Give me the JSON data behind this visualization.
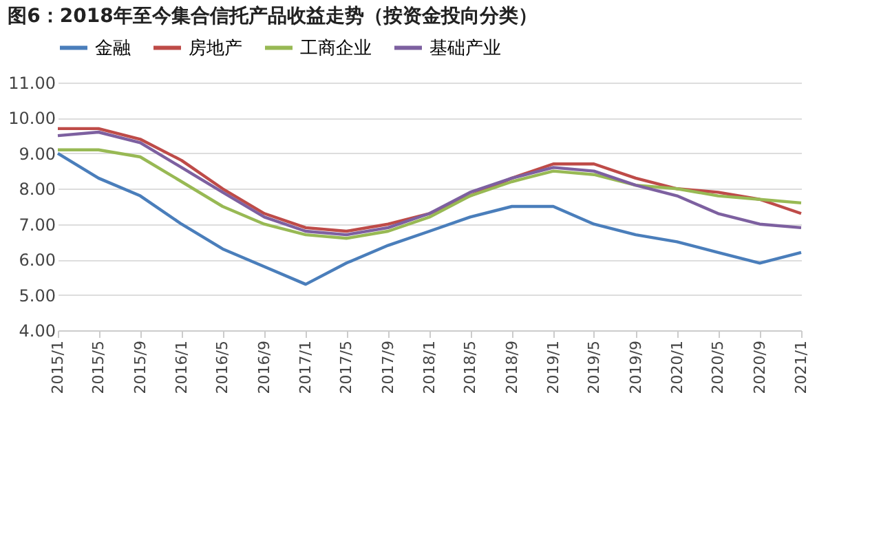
{
  "chart_data": {
    "type": "line",
    "title": "图6：2018年至今集合信托产品收益走势（按资金投向分类）",
    "x": [
      "2015-01",
      "2015-05",
      "2015-09",
      "2016-01",
      "2016-05",
      "2016-09",
      "2017-01",
      "2017-05",
      "2017-09",
      "2018-01",
      "2018-05",
      "2018-09",
      "2019-01",
      "2019-05",
      "2019-09",
      "2020-01",
      "2020-05",
      "2020-09",
      "2021-01"
    ],
    "series": [
      {
        "name": "金融",
        "color": "#4a7ebb",
        "values": [
          9.0,
          8.3,
          7.8,
          7.0,
          6.3,
          5.8,
          5.3,
          5.9,
          6.4,
          6.8,
          7.2,
          7.5,
          7.5,
          7.0,
          6.7,
          6.5,
          6.2,
          5.9,
          6.2
        ]
      },
      {
        "name": "房地产",
        "color": "#be4b48",
        "values": [
          9.7,
          9.7,
          9.4,
          8.8,
          8.0,
          7.3,
          6.9,
          6.8,
          7.0,
          7.3,
          7.8,
          8.3,
          8.7,
          8.7,
          8.3,
          8.0,
          7.9,
          7.7,
          7.3
        ]
      },
      {
        "name": "工商企业",
        "color": "#98b954",
        "values": [
          9.1,
          9.1,
          8.9,
          8.2,
          7.5,
          7.0,
          6.7,
          6.6,
          6.8,
          7.2,
          7.8,
          8.2,
          8.5,
          8.4,
          8.1,
          8.0,
          7.8,
          7.7,
          7.6
        ]
      },
      {
        "name": "基础产业",
        "color": "#7d60a0",
        "values": [
          9.5,
          9.6,
          9.3,
          8.6,
          7.9,
          7.2,
          6.8,
          6.7,
          6.9,
          7.3,
          7.9,
          8.3,
          8.6,
          8.5,
          8.1,
          7.8,
          7.3,
          7.0,
          6.9
        ]
      }
    ],
    "xlim": [
      "2015-01",
      "2021-01"
    ],
    "xticks": [
      {
        "value": "2015-01",
        "label": "2015/1"
      },
      {
        "value": "2015-05",
        "label": "2015/5"
      },
      {
        "value": "2015-09",
        "label": "2015/9"
      },
      {
        "value": "2016-01",
        "label": "2016/1"
      },
      {
        "value": "2016-05",
        "label": "2016/5"
      },
      {
        "value": "2016-09",
        "label": "2016/9"
      },
      {
        "value": "2017-01",
        "label": "2017/1"
      },
      {
        "value": "2017-05",
        "label": "2017/5"
      },
      {
        "value": "2017-09",
        "label": "2017/9"
      },
      {
        "value": "2018-01",
        "label": "2018/1"
      },
      {
        "value": "2018-05",
        "label": "2018/5"
      },
      {
        "value": "2018-09",
        "label": "2018/9"
      },
      {
        "value": "2019-01",
        "label": "2019/1"
      },
      {
        "value": "2019-05",
        "label": "2019/5"
      },
      {
        "value": "2019-09",
        "label": "2019/9"
      },
      {
        "value": "2020-01",
        "label": "2020/1"
      },
      {
        "value": "2020-05",
        "label": "2020/5"
      },
      {
        "value": "2020-09",
        "label": "2020/9"
      },
      {
        "value": "2021-01",
        "label": "2021/1"
      }
    ],
    "ylim": [
      4,
      11
    ],
    "yticks": [
      {
        "value": 4,
        "label": "4.00"
      },
      {
        "value": 5,
        "label": "5.00"
      },
      {
        "value": 6,
        "label": "6.00"
      },
      {
        "value": 7,
        "label": "7.00"
      },
      {
        "value": 8,
        "label": "8.00"
      },
      {
        "value": 9,
        "label": "9.00"
      },
      {
        "value": 10,
        "label": "10.00"
      },
      {
        "value": 11,
        "label": "11.00"
      }
    ],
    "grid": "y",
    "legend": "top",
    "marker": "none",
    "line_style": "solid"
  }
}
